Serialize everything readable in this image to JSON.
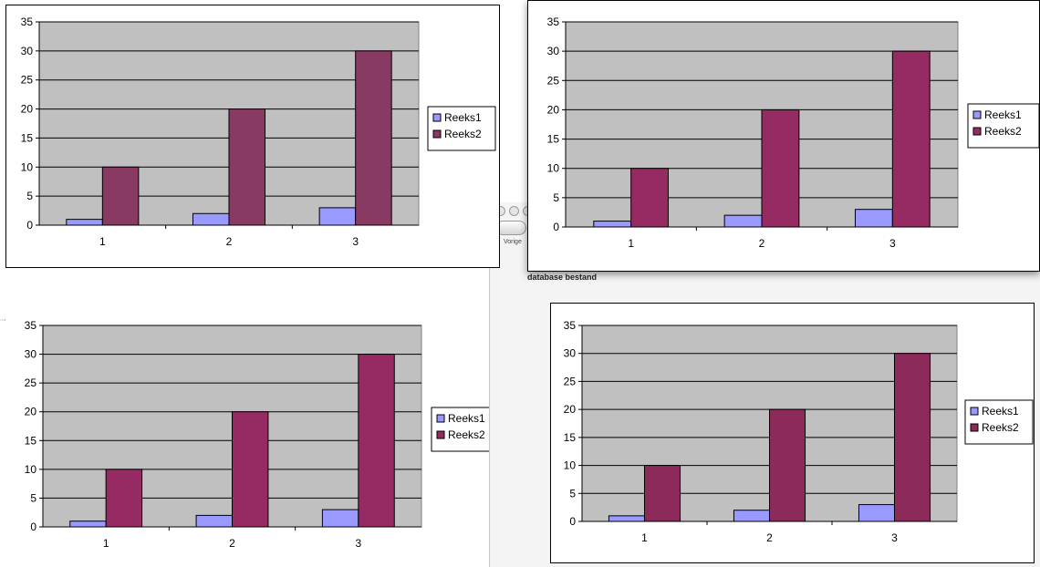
{
  "window": {
    "nav_label": "Vorige",
    "subtitle": "database bestand"
  },
  "chart_data": [
    {
      "type": "bar",
      "categories": [
        "1",
        "2",
        "3"
      ],
      "series": [
        {
          "name": "Reeks1",
          "values": [
            1,
            2,
            3
          ],
          "color": "#9999ff"
        },
        {
          "name": "Reeks2",
          "values": [
            10,
            20,
            30
          ],
          "color": "#883a63"
        }
      ],
      "ylim": [
        0,
        35
      ],
      "yticks": [
        0,
        5,
        10,
        15,
        20,
        25,
        30,
        35
      ],
      "grid": true,
      "plot_background": "#c0c0c0",
      "legend": "right"
    },
    {
      "type": "bar",
      "categories": [
        "1",
        "2",
        "3"
      ],
      "series": [
        {
          "name": "Reeks1",
          "values": [
            1,
            2,
            3
          ],
          "color": "#9999ff"
        },
        {
          "name": "Reeks2",
          "values": [
            10,
            20,
            30
          ],
          "color": "#962a62"
        }
      ],
      "ylim": [
        0,
        35
      ],
      "yticks": [
        0,
        5,
        10,
        15,
        20,
        25,
        30,
        35
      ],
      "grid": true,
      "plot_background": "#c0c0c0",
      "legend": "right"
    },
    {
      "type": "bar",
      "categories": [
        "1",
        "2",
        "3"
      ],
      "series": [
        {
          "name": "Reeks1",
          "values": [
            1,
            2,
            3
          ],
          "color": "#9999ff"
        },
        {
          "name": "Reeks2",
          "values": [
            10,
            20,
            30
          ],
          "color": "#962a62"
        }
      ],
      "ylim": [
        0,
        35
      ],
      "yticks": [
        0,
        5,
        10,
        15,
        20,
        25,
        30,
        35
      ],
      "grid": true,
      "plot_background": "#c0c0c0",
      "legend": "right"
    },
    {
      "type": "bar",
      "categories": [
        "1",
        "2",
        "3"
      ],
      "series": [
        {
          "name": "Reeks1",
          "values": [
            1,
            2,
            3
          ],
          "color": "#9999ff"
        },
        {
          "name": "Reeks2",
          "values": [
            10,
            20,
            30
          ],
          "color": "#8c2a59"
        }
      ],
      "ylim": [
        0,
        35
      ],
      "yticks": [
        0,
        5,
        10,
        15,
        20,
        25,
        30,
        35
      ],
      "grid": true,
      "plot_background": "#c0c0c0",
      "legend": "right"
    }
  ]
}
